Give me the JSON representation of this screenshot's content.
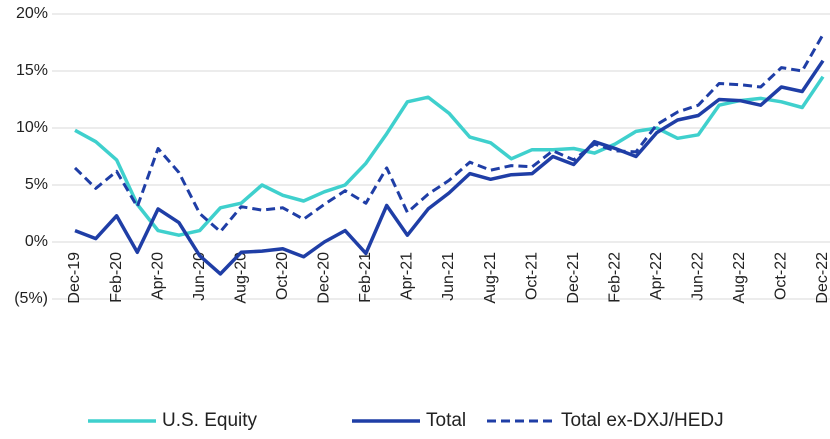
{
  "chart_data": {
    "type": "line",
    "categories": [
      "Dec-19",
      null,
      "Feb-20",
      null,
      "Apr-20",
      null,
      "Jun-20",
      null,
      "Aug-20",
      null,
      "Oct-20",
      null,
      "Dec-20",
      null,
      "Feb-21",
      null,
      "Apr-21",
      null,
      "Jun-21",
      null,
      "Aug-21",
      null,
      "Oct-21",
      null,
      "Dec-21",
      null,
      "Feb-22",
      null,
      "Apr-22",
      null,
      "Jun-22",
      null,
      "Aug-22",
      null,
      "Oct-22",
      null,
      "Dec-22"
    ],
    "series": [
      {
        "name": "U.S. Equity",
        "color": "#3fd0cd",
        "dashed": false,
        "values": [
          9.8,
          8.8,
          7.2,
          3.3,
          1.0,
          0.6,
          1.0,
          3.0,
          3.4,
          5.0,
          4.1,
          3.6,
          4.4,
          5.0,
          6.9,
          9.5,
          12.3,
          12.7,
          11.3,
          9.2,
          8.7,
          7.3,
          8.1,
          8.1,
          8.2,
          7.8,
          8.6,
          9.7,
          10.0,
          9.1,
          9.4,
          12.0,
          12.4,
          12.6,
          12.3,
          11.8,
          14.5
        ]
      },
      {
        "name": "Total",
        "color": "#1f3ea6",
        "dashed": false,
        "values": [
          1.0,
          0.3,
          2.3,
          -0.9,
          2.9,
          1.7,
          -1.2,
          -2.8,
          -0.9,
          -0.8,
          -0.6,
          -1.3,
          0.0,
          1.0,
          -1.0,
          3.2,
          0.6,
          2.9,
          4.3,
          6.0,
          5.5,
          5.9,
          6.0,
          7.5,
          6.8,
          8.8,
          8.2,
          7.5,
          9.6,
          10.7,
          11.1,
          12.5,
          12.4,
          12.0,
          13.6,
          13.2,
          15.9
        ]
      },
      {
        "name": "Total ex-DXJ/HEDJ",
        "color": "#1f3ea6",
        "dashed": true,
        "values": [
          6.5,
          4.7,
          6.2,
          3.1,
          8.2,
          6.1,
          2.5,
          0.9,
          3.1,
          2.8,
          3.0,
          2.0,
          3.3,
          4.5,
          3.4,
          6.5,
          2.6,
          4.2,
          5.4,
          7.0,
          6.3,
          6.7,
          6.6,
          8.0,
          7.2,
          8.6,
          8.0,
          7.9,
          10.3,
          11.4,
          12.0,
          13.9,
          13.8,
          13.6,
          15.3,
          15.0,
          18.2
        ]
      }
    ],
    "ylim": [
      -5,
      20
    ],
    "yticks": [
      {
        "value": -5,
        "label": "(5%)"
      },
      {
        "value": 0,
        "label": "0%"
      },
      {
        "value": 5,
        "label": "5%"
      },
      {
        "value": 10,
        "label": "10%"
      },
      {
        "value": 15,
        "label": "15%"
      },
      {
        "value": 20,
        "label": "20%"
      }
    ],
    "grid": true,
    "legend": "bottom"
  }
}
